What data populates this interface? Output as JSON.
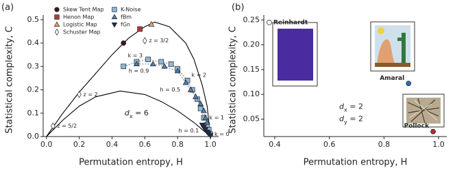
{
  "chart_data": [
    {
      "type": "scatter",
      "panel": "(a)",
      "x_label": "Permutation entropy, H",
      "y_label": "Statistical complexity, C",
      "xlim": [
        -0.02,
        1.05
      ],
      "ylim": [
        0,
        0.52
      ],
      "xticks": [
        {
          "value": 0,
          "label": "0.0"
        },
        0.2,
        0.4,
        0.6,
        0.8,
        {
          "value": 1,
          "label": "1.0"
        }
      ],
      "yticks": [
        {
          "value": 0,
          "label": "0.0"
        },
        0.1,
        0.2,
        0.3,
        0.4,
        0.5
      ],
      "curves": [
        {
          "color": "#000000",
          "x": [
            0,
            0.05,
            0.1,
            0.2,
            0.3,
            0.4,
            0.5,
            0.6,
            0.66,
            0.75,
            0.85,
            0.9,
            0.95,
            0.98,
            1.0
          ],
          "values": [
            0,
            0.05,
            0.1,
            0.19,
            0.27,
            0.35,
            0.42,
            0.47,
            0.49,
            0.47,
            0.4,
            0.33,
            0.22,
            0.13,
            0
          ]
        },
        {
          "color": "#000000",
          "x": [
            0,
            0.1,
            0.2,
            0.3,
            0.45,
            0.6,
            0.7,
            0.8,
            0.9,
            0.95,
            1.0
          ],
          "values": [
            0,
            0.07,
            0.13,
            0.17,
            0.195,
            0.18,
            0.15,
            0.11,
            0.06,
            0.03,
            0
          ]
        }
      ],
      "series": [
        {
          "name": "Skew Tent Map",
          "marker": "circle",
          "color": "#3b1a1f",
          "x": [
            0.47
          ],
          "values": [
            0.4
          ]
        },
        {
          "name": "Henon Map",
          "marker": "square",
          "color": "#b03a3a",
          "x": [
            0.57
          ],
          "values": [
            0.46
          ]
        },
        {
          "name": "Logistic Map",
          "marker": "triangle",
          "color": "#e8a27a",
          "x": [
            0.64
          ],
          "values": [
            0.48
          ]
        },
        {
          "name": "Schuster Map",
          "marker": "diamond",
          "color": "#ffffff",
          "x": [
            0.04,
            0.2,
            0.6
          ],
          "values": [
            0.045,
            0.18,
            0.41
          ],
          "point_labels": [
            "z = 5/2",
            "z = 2",
            "z = 3/2"
          ]
        },
        {
          "name": "K-Noise",
          "marker": "square",
          "color": "#8fb8d8",
          "dashed": true,
          "x": [
            0.47,
            0.55,
            0.62,
            0.7,
            0.76,
            0.8,
            0.86,
            0.89,
            0.92,
            0.94,
            0.96,
            0.98,
            0.99,
            1.0
          ],
          "values": [
            0.3,
            0.32,
            0.33,
            0.32,
            0.31,
            0.29,
            0.24,
            0.2,
            0.16,
            0.12,
            0.08,
            0.05,
            0.03,
            0.01
          ],
          "point_labels": [
            null,
            "k = 3",
            null,
            null,
            null,
            null,
            "k = 2",
            null,
            null,
            null,
            "k = 1",
            null,
            null,
            "k = 0"
          ]
        },
        {
          "name": "fBm",
          "marker": "triangle",
          "color": "#4a7fb0",
          "dashed": true,
          "x": [
            0.55,
            0.65,
            0.72,
            0.8,
            0.85,
            0.88,
            0.91,
            0.94,
            0.96,
            0.97,
            0.98
          ],
          "values": [
            0.31,
            0.31,
            0.3,
            0.28,
            0.23,
            0.2,
            0.17,
            0.14,
            0.11,
            0.08,
            0.06
          ],
          "point_labels": [
            null,
            "h = 0.9",
            null,
            null,
            "h = 0.5",
            null,
            null,
            null,
            null,
            null,
            "h = 0.1"
          ]
        },
        {
          "name": "fGn",
          "marker": "triangle-down",
          "color": "#1f2a4a",
          "x": [
            0.95,
            0.96,
            0.97,
            0.98,
            0.99,
            1.0
          ],
          "values": [
            0.05,
            0.04,
            0.03,
            0.02,
            0.015,
            0.005
          ]
        }
      ],
      "annotations": [
        {
          "parts": [
            "d",
            "x",
            " = 6"
          ]
        }
      ]
    },
    {
      "type": "scatter",
      "panel": "(b)",
      "x_label": "Permutation entropy, H",
      "y_label": "Statistical complexity, C",
      "xlim": [
        0.36,
        1.03
      ],
      "ylim": [
        0.015,
        0.26
      ],
      "xticks": [
        0.4,
        0.6,
        0.8,
        {
          "value": 1,
          "label": "1.0"
        }
      ],
      "yticks": [
        0.05,
        {
          "value": 0.1,
          "label": "0.10"
        },
        0.15,
        {
          "value": 0.2,
          "label": "0.20"
        },
        0.25
      ],
      "series": [
        {
          "name": "Reinhardt",
          "marker": "circle",
          "color": "#ffffff",
          "x": [
            0.38
          ],
          "values": [
            0.245
          ]
        },
        {
          "name": "Amaral",
          "marker": "circle",
          "color": "#2f6db5",
          "x": [
            0.89
          ],
          "values": [
            0.122
          ]
        },
        {
          "name": "Pollock",
          "marker": "circle",
          "color": "#b03030",
          "x": [
            0.98
          ],
          "values": [
            0.025
          ]
        }
      ],
      "annotations": [
        {
          "parts": [
            "d",
            "x",
            " = 2"
          ]
        },
        {
          "parts": [
            "d",
            "y",
            " = 2"
          ]
        }
      ]
    }
  ]
}
